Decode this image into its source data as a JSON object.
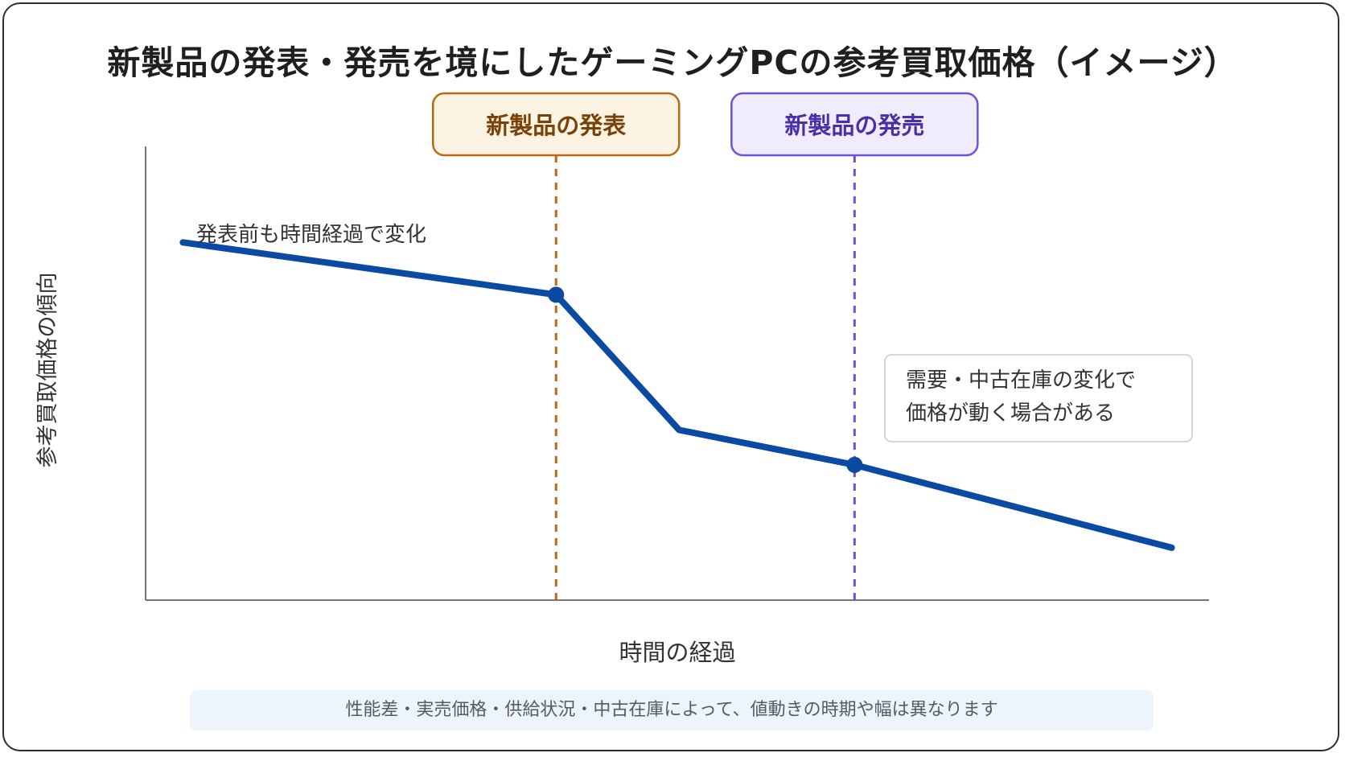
{
  "title": "新製品の発表・発売を境にしたゲーミングPCの参考買取価格（イメージ）",
  "chart_data": {
    "type": "line",
    "xlabel": "時間の経過",
    "ylabel": "参考買取価格の傾向",
    "x": [
      0,
      1,
      1.33,
      1.8,
      2.65
    ],
    "values": [
      0.78,
      0.66,
      0.35,
      0.27,
      0.08
    ],
    "xlim": [
      -0.1,
      2.75
    ],
    "ylim": [
      -0.04,
      1.0
    ],
    "series_color": "#0b4aa2",
    "events": [
      {
        "label": "新製品の発表",
        "x": 1,
        "color": "#b86a12",
        "text_color": "#7a4208",
        "fill": "#fdf3e3"
      },
      {
        "label": "新製品の発売",
        "x": 1.8,
        "color": "#7150d8",
        "text_color": "#4a2fa8",
        "fill": "#efedfd"
      }
    ],
    "markers": [
      1,
      3
    ],
    "annotations": [
      "発表前も時間経過で変化",
      "需要・中古在庫の変化で",
      "価格が動く場合がある"
    ]
  },
  "note": "性能差・実売価格・供給状況・中古在庫によって、値動きの時期や幅は異なります"
}
